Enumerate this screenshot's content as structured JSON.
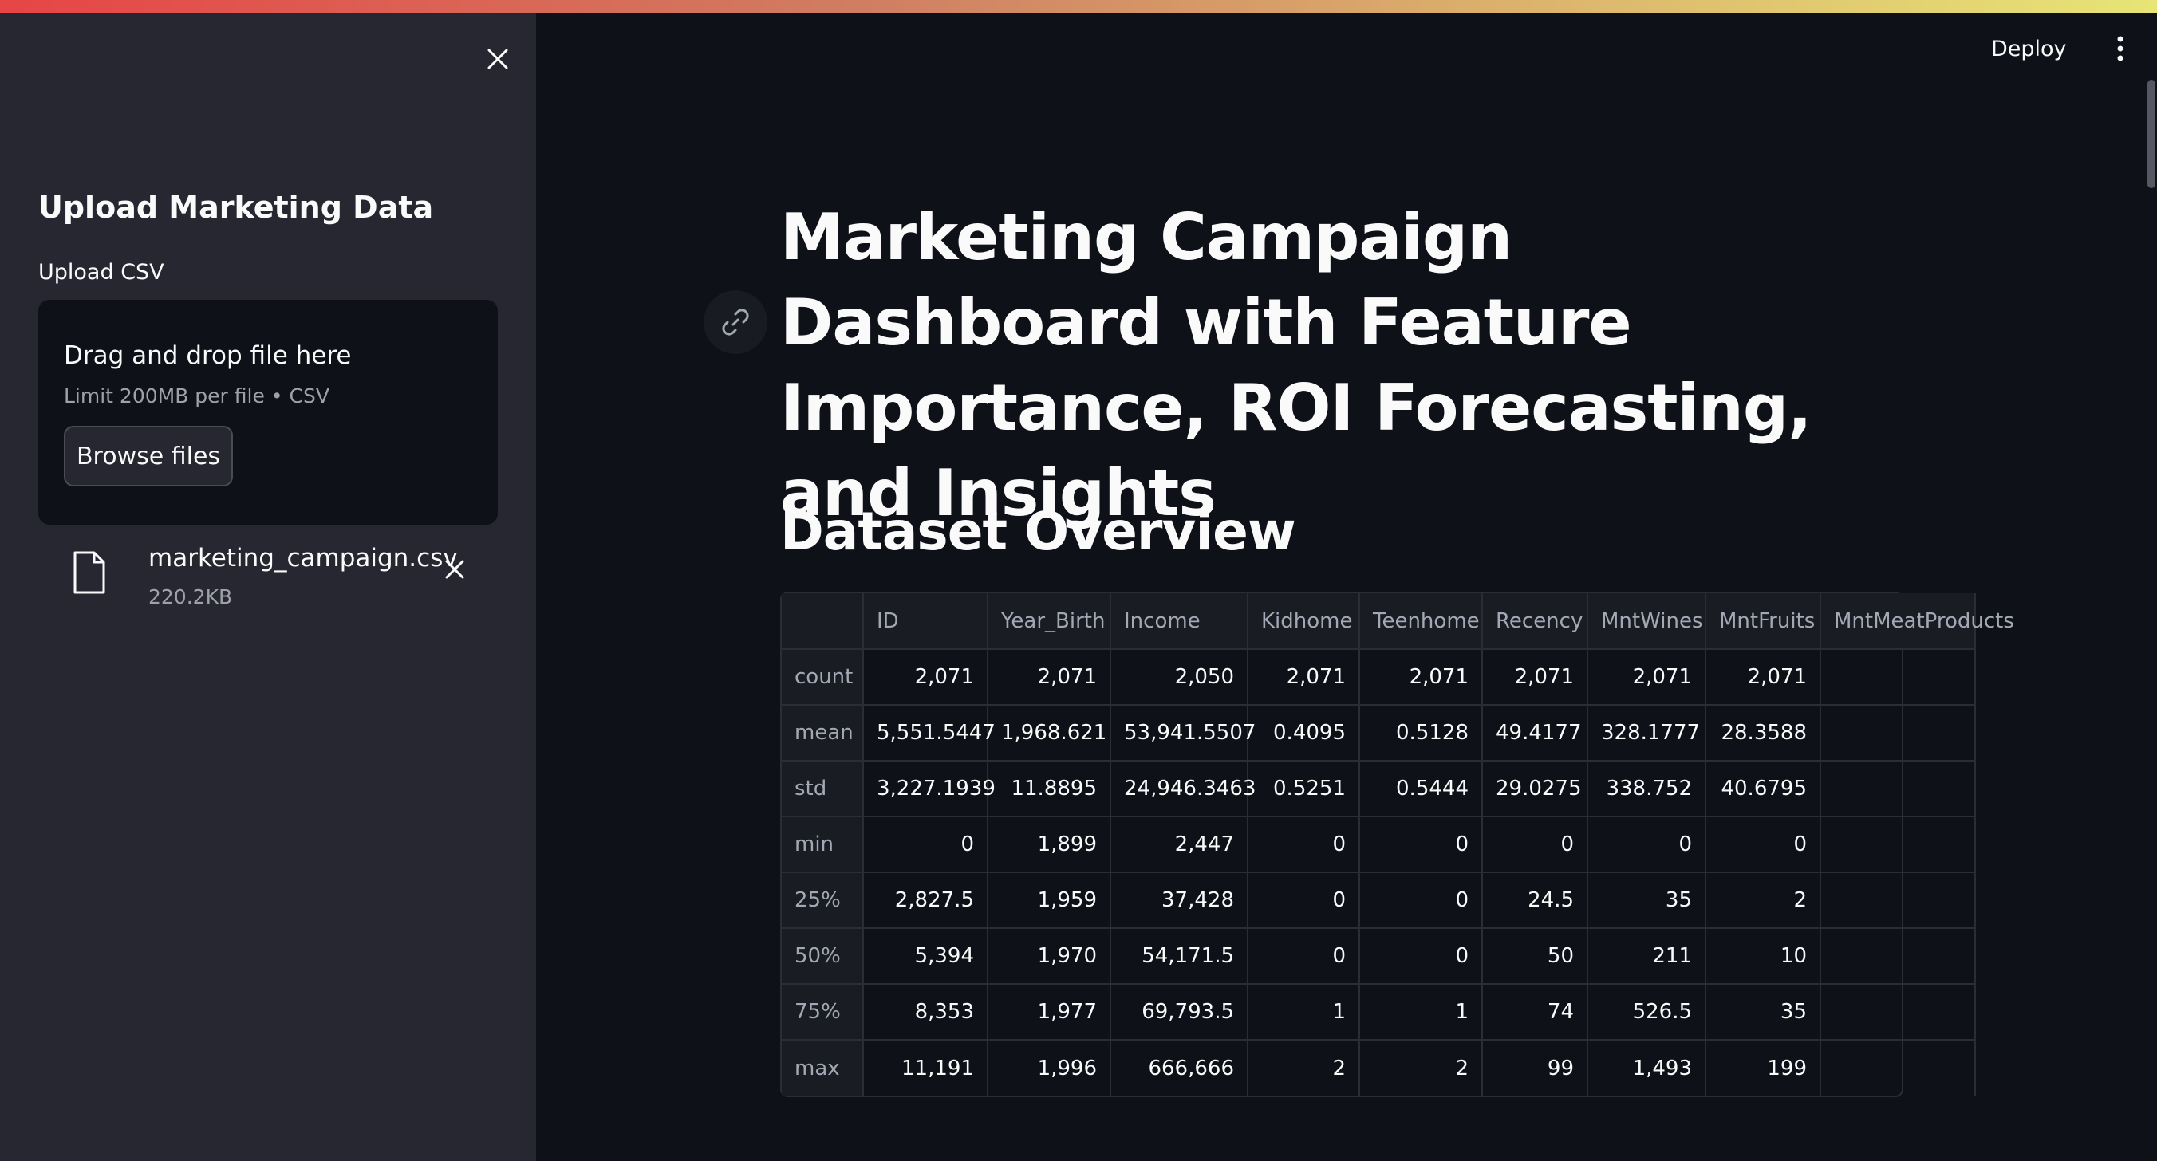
{
  "sidebar": {
    "title": "Upload Marketing Data",
    "upload_label": "Upload CSV",
    "dropzone": {
      "instruction": "Drag and drop file here",
      "limit": "Limit 200MB per file • CSV",
      "browse_label": "Browse files"
    },
    "file": {
      "name": "marketing_campaign.csv",
      "size": "220.2KB"
    }
  },
  "header": {
    "deploy_label": "Deploy"
  },
  "main": {
    "title": "Marketing Campaign Dashboard with Feature Importance, ROI Forecasting, and Insights",
    "section_title": "Dataset Overview",
    "table": {
      "columns": [
        "",
        "ID",
        "Year_Birth",
        "Income",
        "Kidhome",
        "Teenhome",
        "Recency",
        "MntWines",
        "MntFruits",
        "MntMeatProducts"
      ],
      "rows": [
        [
          "count",
          "2,071",
          "2,071",
          "2,050",
          "2,071",
          "2,071",
          "2,071",
          "2,071",
          "2,071",
          ""
        ],
        [
          "mean",
          "5,551.5447",
          "1,968.621",
          "53,941.5507",
          "0.4095",
          "0.5128",
          "49.4177",
          "328.1777",
          "28.3588",
          ""
        ],
        [
          "std",
          "3,227.1939",
          "11.8895",
          "24,946.3463",
          "0.5251",
          "0.5444",
          "29.0275",
          "338.752",
          "40.6795",
          ""
        ],
        [
          "min",
          "0",
          "1,899",
          "2,447",
          "0",
          "0",
          "0",
          "0",
          "0",
          ""
        ],
        [
          "25%",
          "2,827.5",
          "1,959",
          "37,428",
          "0",
          "0",
          "24.5",
          "35",
          "2",
          ""
        ],
        [
          "50%",
          "5,394",
          "1,970",
          "54,171.5",
          "0",
          "0",
          "50",
          "211",
          "10",
          ""
        ],
        [
          "75%",
          "8,353",
          "1,977",
          "69,793.5",
          "1",
          "1",
          "74",
          "526.5",
          "35",
          ""
        ],
        [
          "max",
          "11,191",
          "1,996",
          "666,666",
          "2",
          "2",
          "99",
          "1,493",
          "199",
          ""
        ]
      ]
    }
  },
  "colors": {
    "background": "#0e1117",
    "sidebar": "#262730",
    "accent": "#ff4b4b"
  }
}
